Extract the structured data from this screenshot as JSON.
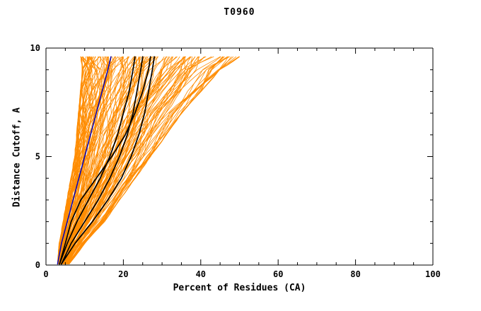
{
  "chart_data": {
    "type": "line",
    "title": "T0960",
    "xlabel": "Percent of Residues (CA)",
    "ylabel": "Distance Cutoff, A",
    "xlim": [
      0,
      100
    ],
    "ylim": [
      0,
      10
    ],
    "x_major_ticks": [
      0,
      20,
      40,
      60,
      80,
      100
    ],
    "x_minor_step": 5,
    "y_major_ticks": [
      0,
      5,
      10
    ],
    "y_minor_step": 1,
    "grid": false,
    "legend": "none",
    "background_color": "#ffffff",
    "axis_color": "#000000",
    "ensemble": {
      "name": "server-model-curves",
      "color": "#FF8C00",
      "count": 150,
      "line_width": 0.8,
      "y_samples": [
        0.05,
        1,
        2,
        3,
        4,
        5,
        6,
        7,
        8,
        9,
        9.6
      ],
      "x_min": [
        3,
        3.5,
        4.5,
        5.5,
        6.5,
        7.5,
        8,
        8.5,
        9,
        9.5,
        9
      ],
      "x_max": [
        6,
        10,
        15,
        19,
        23,
        27,
        31,
        35,
        40,
        45,
        50
      ]
    },
    "highlight_series": [
      {
        "name": "blue-model",
        "color": "#0000BB",
        "line_width": 1.5,
        "points": [
          [
            3,
            0.05
          ],
          [
            4,
            1
          ],
          [
            5.5,
            2
          ],
          [
            7,
            3
          ],
          [
            8.5,
            4
          ],
          [
            10,
            5
          ],
          [
            11.5,
            6
          ],
          [
            13,
            7
          ],
          [
            14.5,
            8
          ],
          [
            16,
            9
          ],
          [
            16.8,
            9.6
          ]
        ]
      },
      {
        "name": "black-model-1",
        "color": "#000000",
        "line_width": 1.7,
        "points": [
          [
            3.5,
            0.05
          ],
          [
            5.5,
            1
          ],
          [
            8,
            2
          ],
          [
            11,
            3
          ],
          [
            14,
            4
          ],
          [
            16.5,
            5
          ],
          [
            18.5,
            6
          ],
          [
            20,
            7
          ],
          [
            21.5,
            8
          ],
          [
            22.5,
            9
          ],
          [
            23,
            9.6
          ]
        ]
      },
      {
        "name": "black-model-2",
        "color": "#000000",
        "line_width": 1.7,
        "points": [
          [
            4,
            0.05
          ],
          [
            6.5,
            1
          ],
          [
            10,
            2
          ],
          [
            13.5,
            3
          ],
          [
            16.5,
            4
          ],
          [
            19,
            5
          ],
          [
            21,
            6
          ],
          [
            22.5,
            7
          ],
          [
            23.5,
            8
          ],
          [
            24.5,
            9
          ],
          [
            25,
            9.6
          ]
        ]
      },
      {
        "name": "black-model-3",
        "color": "#000000",
        "line_width": 1.7,
        "points": [
          [
            4,
            0.05
          ],
          [
            7.5,
            1
          ],
          [
            12,
            2
          ],
          [
            16,
            3
          ],
          [
            19.5,
            4
          ],
          [
            22,
            5
          ],
          [
            24,
            6
          ],
          [
            25.5,
            7
          ],
          [
            26.5,
            8
          ],
          [
            27.5,
            9
          ],
          [
            28,
            9.6
          ]
        ]
      },
      {
        "name": "black-model-4",
        "color": "#000000",
        "line_width": 1.7,
        "points": [
          [
            3.5,
            0.05
          ],
          [
            5,
            1
          ],
          [
            6.5,
            2
          ],
          [
            9,
            3
          ],
          [
            13,
            4
          ],
          [
            17,
            5
          ],
          [
            20.5,
            6
          ],
          [
            23,
            7
          ],
          [
            25,
            8
          ],
          [
            26.5,
            9
          ],
          [
            27,
            9.6
          ]
        ]
      }
    ]
  }
}
